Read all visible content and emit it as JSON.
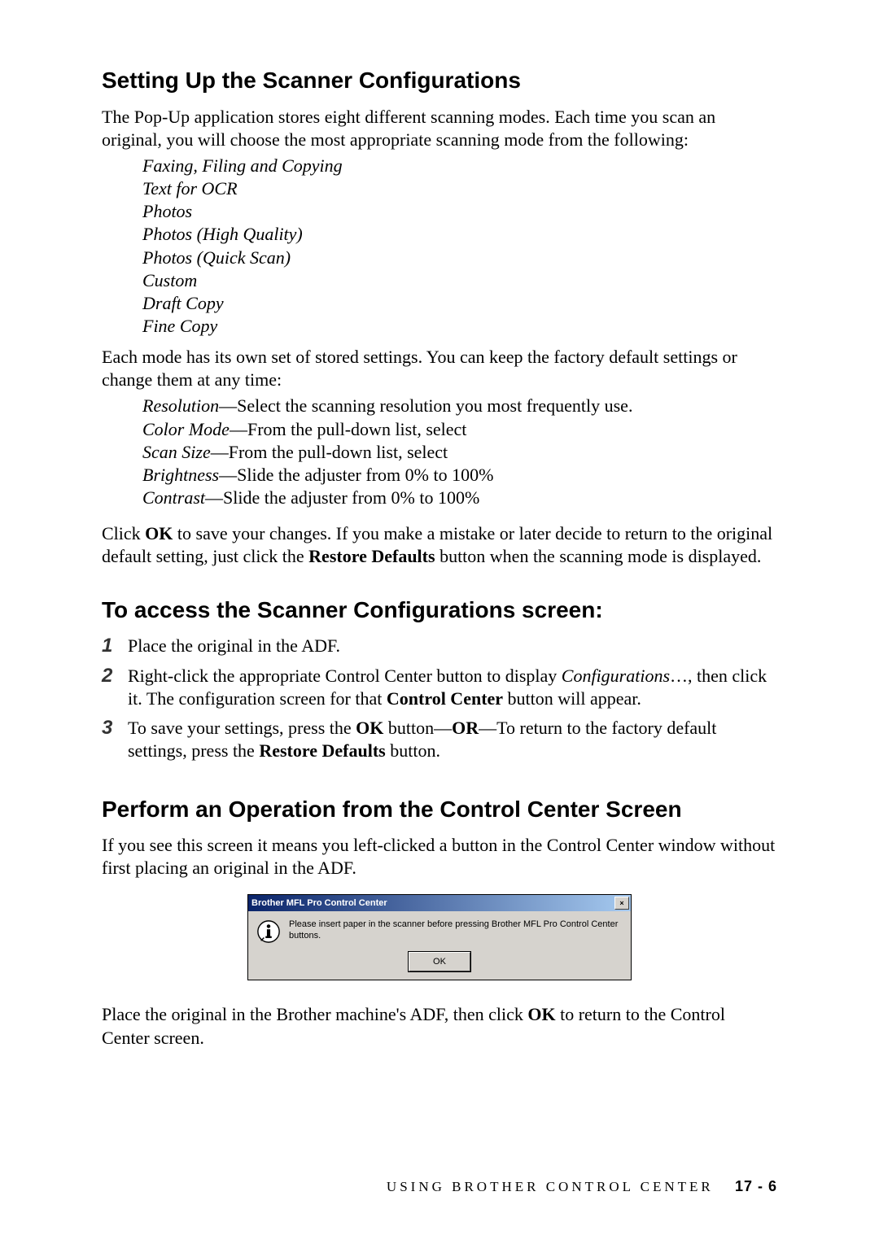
{
  "heading1": "Setting Up the Scanner Configurations",
  "intro1": "The Pop-Up application stores eight different scanning modes. Each time you scan an original, you will choose the most appropriate scanning mode from the following:",
  "modes": [
    "Faxing, Filing and Copying",
    "Text for OCR",
    "Photos",
    "Photos (High Quality)",
    "Photos (Quick Scan)",
    "Custom",
    "Draft Copy",
    "Fine Copy"
  ],
  "intro2": "Each mode has its own set of stored settings. You can keep the factory default settings or change them at any time:",
  "settings": [
    {
      "term": "Resolution",
      "desc": "—Select the scanning resolution you most frequently use."
    },
    {
      "term": "Color Mode",
      "desc": "—From the pull-down list, select"
    },
    {
      "term": "Scan Size",
      "desc": "—From the pull-down list, select"
    },
    {
      "term": "Brightness",
      "desc": "—Slide the adjuster from 0% to 100%"
    },
    {
      "term": "Contrast",
      "desc": "—Slide the adjuster from 0% to 100%"
    }
  ],
  "save_paragraph": {
    "pre": "Click ",
    "b1": "OK",
    "mid1": " to save your changes. If you make a mistake or later decide to return to the original default setting, just click the ",
    "b2": "Restore Defaults",
    "post": " button when the scanning mode is displayed."
  },
  "heading2": "To access the Scanner Configurations screen:",
  "steps": [
    {
      "num": "1",
      "html": "Place the original in the ADF."
    },
    {
      "num": "2",
      "html": "Right-click the appropriate Control Center button to display <span class=\"ital\">Configurations</span>…, then click it. The configuration screen for that <span class=\"bold\">Control Center</span> button will appear."
    },
    {
      "num": "3",
      "html": "To save your settings, press the <span class=\"bold\">OK</span> button—<span class=\"bold\">OR</span>—To return to the factory default settings, press the <span class=\"bold\">Restore Defaults</span> button."
    }
  ],
  "heading3": "Perform an Operation from the Control Center Screen",
  "intro3": "If you see this screen it means you left-clicked a button in the Control Center window without first placing an original in the ADF.",
  "dialog": {
    "title": "Brother MFL Pro Control Center",
    "message": "Please insert paper in the scanner before pressing Brother MFL Pro Control Center buttons.",
    "ok": "OK",
    "close": "×"
  },
  "closing": {
    "pre": "Place the original in the Brother machine's ADF, then click ",
    "b": "OK",
    "post": " to return to the Control Center screen."
  },
  "footer": {
    "text": "USING BROTHER CONTROL CENTER",
    "page": "17 - 6"
  }
}
